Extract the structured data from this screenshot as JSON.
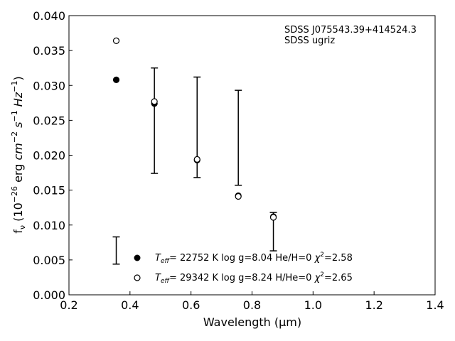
{
  "chart_data": {
    "type": "scatter",
    "xlabel": "Wavelength (μm)",
    "ylabel": "f_ν (10^-26 erg cm^-2 s^-1 Hz^-1)",
    "xlim": [
      0.2,
      1.4
    ],
    "ylim": [
      0.0,
      0.04
    ],
    "x_ticks": [
      0.2,
      0.4,
      0.6,
      0.8,
      1.0,
      1.2,
      1.4
    ],
    "x_tick_labels": [
      "0.2",
      "0.4",
      "0.6",
      "0.8",
      "1.0",
      "1.2",
      "1.4"
    ],
    "y_ticks": [
      0.0,
      0.005,
      0.01,
      0.015,
      0.02,
      0.025,
      0.03,
      0.035,
      0.04
    ],
    "y_tick_labels": [
      "0.000",
      "0.005",
      "0.010",
      "0.015",
      "0.020",
      "0.025",
      "0.030",
      "0.035",
      "0.040"
    ],
    "grid": false,
    "annotation": [
      "SDSS J075543.39+414524.3",
      "SDSS ugriz"
    ],
    "observed": {
      "x": [
        0.355,
        0.48,
        0.62,
        0.755,
        0.87
      ],
      "y_low": [
        0.0044,
        0.0174,
        0.0168,
        0.0157,
        0.0063
      ],
      "y_high": [
        0.0083,
        0.0325,
        0.0312,
        0.0293,
        0.0118
      ]
    },
    "series": [
      {
        "legend": "T_eff= 22752 K  log g=8.04  He/H=0  χ²=2.58",
        "marker": "filled-circle",
        "x": [
          0.355,
          0.48,
          0.62,
          0.755,
          0.87
        ],
        "y": [
          0.0308,
          0.0274,
          0.0193,
          0.0142,
          0.0112
        ]
      },
      {
        "legend": "T_eff= 29342 K  log g=8.24  H/He=0  χ²=2.65",
        "marker": "open-circle",
        "x": [
          0.355,
          0.48,
          0.62,
          0.755,
          0.87
        ],
        "y": [
          0.0364,
          0.0277,
          0.0194,
          0.0141,
          0.0111
        ]
      }
    ]
  }
}
